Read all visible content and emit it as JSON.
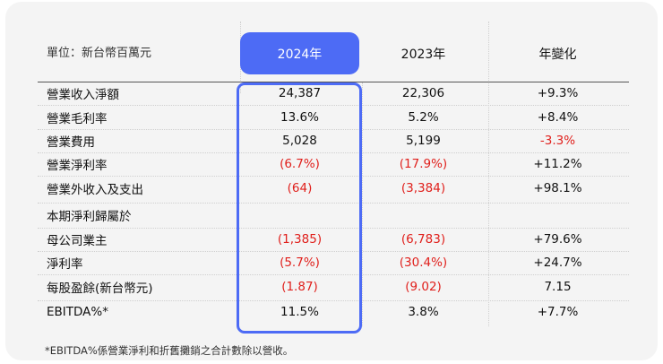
{
  "table": {
    "unit_label": "單位：新台幣百萬元",
    "columns": [
      "2024年",
      "2023年",
      "年變化"
    ],
    "highlight_color": "#4d6bf5",
    "negative_color": "#e0201c",
    "rows": [
      {
        "label": "營業收入淨額",
        "y2024": "24,387",
        "y2023": "22,306",
        "change": "+9.3%",
        "neg2024": false,
        "neg2023": false,
        "negchange": false
      },
      {
        "label": "營業毛利率",
        "y2024": "13.6%",
        "y2023": "5.2%",
        "change": "+8.4%",
        "neg2024": false,
        "neg2023": false,
        "negchange": false
      },
      {
        "label": "營業費用",
        "y2024": "5,028",
        "y2023": "5,199",
        "change": "-3.3%",
        "neg2024": false,
        "neg2023": false,
        "negchange": true
      },
      {
        "label": "營業淨利率",
        "y2024": "(6.7%)",
        "y2023": "(17.9%)",
        "change": "+11.2%",
        "neg2024": true,
        "neg2023": true,
        "negchange": false
      },
      {
        "label": "營業外收入及支出",
        "y2024": "(64)",
        "y2023": "(3,384)",
        "change": "+98.1%",
        "neg2024": true,
        "neg2023": true,
        "negchange": false
      },
      {
        "label": "本期淨利歸屬於",
        "y2024": "",
        "y2023": "",
        "change": "",
        "neg2024": false,
        "neg2023": false,
        "negchange": false
      },
      {
        "label": "母公司業主",
        "y2024": "(1,385)",
        "y2023": "(6,783)",
        "change": "+79.6%",
        "neg2024": true,
        "neg2023": true,
        "negchange": false
      },
      {
        "label": "淨利率",
        "y2024": "(5.7%)",
        "y2023": "(30.4%)",
        "change": "+24.7%",
        "neg2024": true,
        "neg2023": true,
        "negchange": false
      },
      {
        "label": "每股盈餘(新台幣元)",
        "y2024": "(1.87)",
        "y2023": "(9.02)",
        "change": "7.15",
        "neg2024": true,
        "neg2023": true,
        "negchange": false
      },
      {
        "label": "EBITDA%*",
        "y2024": "11.5%",
        "y2023": "3.8%",
        "change": "+7.7%",
        "neg2024": false,
        "neg2023": false,
        "negchange": false
      }
    ],
    "footnote": "*EBITDA%係營業淨利和折舊攤銷之合計數除以營收。"
  }
}
